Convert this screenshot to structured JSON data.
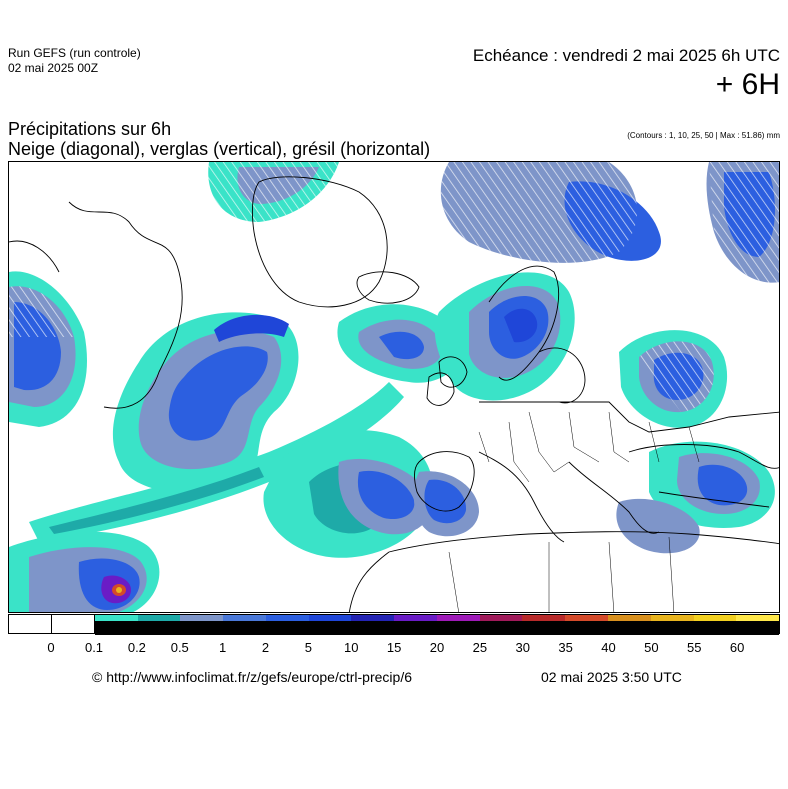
{
  "header": {
    "run_title": "Run GEFS (run controle)",
    "run_date": "02 mai 2025 00Z",
    "echeance": "Echéance : vendredi 2 mai 2025 6h UTC",
    "lead_time": "+ 6H"
  },
  "plot": {
    "title_line1": "Précipitations sur 6h",
    "title_line2": "Neige (diagonal), verglas (vertical), grésil (horizontal)",
    "contours_note": "(Contours : 1, 10, 25, 50 | Max : 51.86) mm"
  },
  "legend": {
    "unit": "mm",
    "steps": [
      {
        "label": "0",
        "color": "#ffffff"
      },
      {
        "label": "0.1",
        "color": "#ffffff"
      },
      {
        "label": "0.2",
        "color": "#3ae3c8"
      },
      {
        "label": "0.5",
        "color": "#1eaaa8"
      },
      {
        "label": "1",
        "color": "#7e95c9"
      },
      {
        "label": "2",
        "color": "#4a78d8"
      },
      {
        "label": "5",
        "color": "#2c5fe0"
      },
      {
        "label": "10",
        "color": "#1f46d8"
      },
      {
        "label": "15",
        "color": "#2424b4"
      },
      {
        "label": "20",
        "color": "#6a1cc6"
      },
      {
        "label": "25",
        "color": "#9e1ab8"
      },
      {
        "label": "30",
        "color": "#a01a5a"
      },
      {
        "label": "35",
        "color": "#b82a2a"
      },
      {
        "label": "40",
        "color": "#d44a2a"
      },
      {
        "label": "50",
        "color": "#d8901e"
      },
      {
        "label": "55",
        "color": "#e8b41e"
      },
      {
        "label": "60",
        "color": "#f2d020"
      },
      {
        "label": "",
        "color": "#ffe84a"
      }
    ]
  },
  "footer": {
    "copyright": "© http://www.infoclimat.fr/z/gefs/europe/ctrl-precip/6",
    "generated": "02 mai 2025  3:50 UTC"
  },
  "map": {
    "max_precip_mm": 51.86,
    "hatching": "snow (diagonal)",
    "colors": {
      "light": "#3ae3c8",
      "medium": "#1eaaa8",
      "grey": "#7e95c9",
      "blue": "#2c5fe0",
      "deep": "#1f46d8",
      "purple": "#6a1cc6",
      "max": "#d44a2a"
    }
  }
}
